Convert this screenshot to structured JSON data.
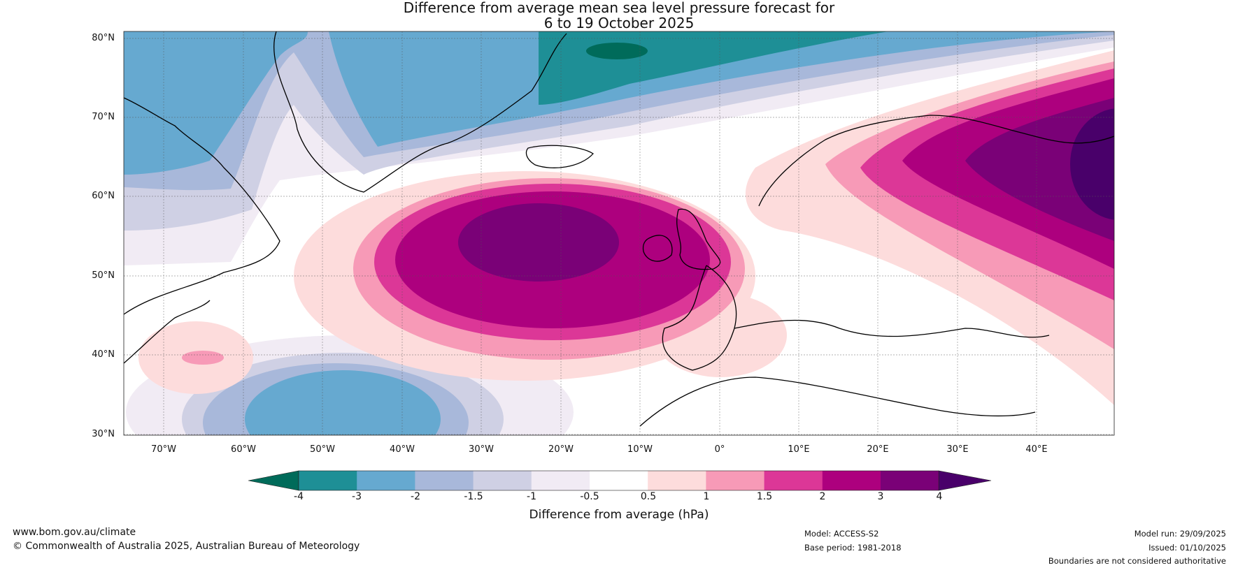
{
  "title": {
    "line1": "Difference from average mean sea level pressure forecast for",
    "line2": "6 to 19 October 2025"
  },
  "map": {
    "lat_ticks": [
      "80°N",
      "70°N",
      "60°N",
      "50°N",
      "40°N",
      "30°N"
    ],
    "lon_ticks": [
      "70°W",
      "60°W",
      "50°W",
      "40°W",
      "30°W",
      "20°W",
      "10°W",
      "0°",
      "10°E",
      "20°E",
      "30°E",
      "40°E"
    ]
  },
  "colorbar": {
    "title": "Difference from average (hPa)",
    "labels": [
      "-4",
      "-3",
      "-2",
      "-1.5",
      "-1",
      "-0.5",
      "0.5",
      "1",
      "1.5",
      "2",
      "3",
      "4"
    ],
    "colors": [
      "#006b5a",
      "#1e8f96",
      "#66a9d0",
      "#a8b8da",
      "#cfd0e4",
      "#f1ebf4",
      "#ffffff",
      "#fddcdc",
      "#f79ab7",
      "#dc3797",
      "#ad007e",
      "#7a0177",
      "#49006a"
    ]
  },
  "footer": {
    "url": "www.bom.gov.au/climate",
    "copyright": "© Commonwealth of Australia 2025, Australian Bureau of Meteorology",
    "model": "Model: ACCESS-S2",
    "base_period": "Base period: 1981-2018",
    "model_run": "Model run: 29/09/2025",
    "issued": "Issued: 01/10/2025",
    "disclaimer": "Boundaries are not considered authoritative"
  }
}
